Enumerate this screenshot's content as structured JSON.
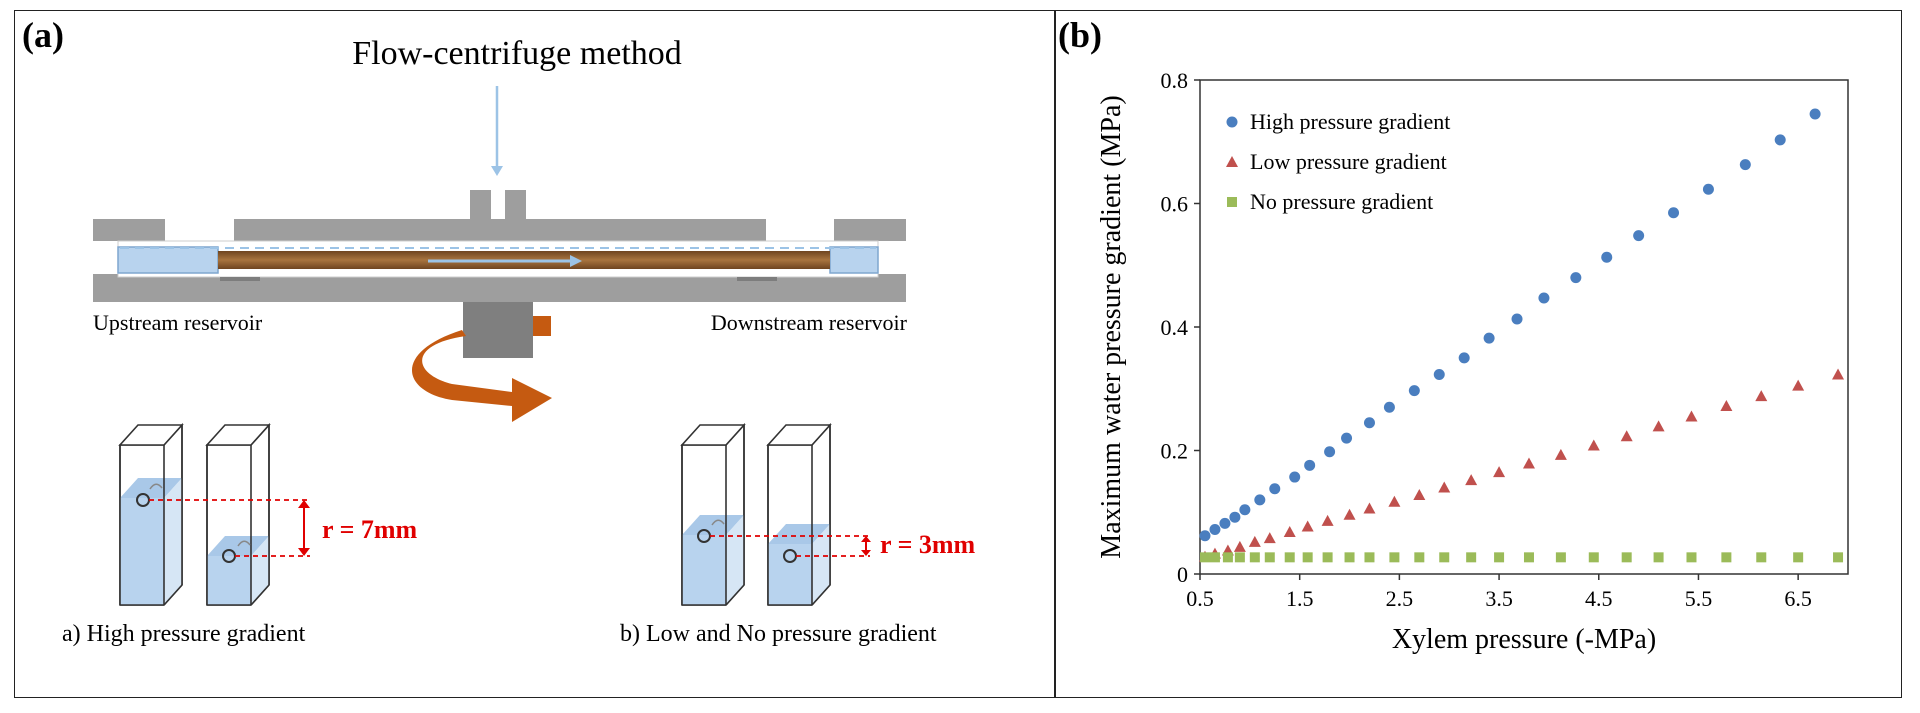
{
  "panel_a": {
    "label": "(a)",
    "title": "Flow-centrifuge method",
    "upstream_label": "Upstream reservoir",
    "downstream_label": "Downstream reservoir",
    "case_a_label": "a) High pressure gradient",
    "case_b_label": "b) Low and No pressure gradient",
    "r_high": "r = 7mm",
    "r_low": "r = 3mm"
  },
  "panel_b": {
    "label": "(b)"
  },
  "colors": {
    "high": "#4a7ebf",
    "low": "#c0504d",
    "none": "#9bbb59",
    "rotation_arrow": "#c55a11",
    "wood": "#8b5a2b",
    "water": "#b8d3ee",
    "guide_red": "#e00000"
  },
  "chart_data": {
    "type": "scatter",
    "xlabel": "Xylem pressure (-MPa)",
    "ylabel": "Maximum water pressure gradient (MPa)",
    "xlim": [
      0.5,
      7.0
    ],
    "ylim": [
      0,
      0.8
    ],
    "xticks": [
      "0.5",
      "1.5",
      "2.5",
      "3.5",
      "4.5",
      "5.5",
      "6.5"
    ],
    "yticks": [
      "0",
      "0.2",
      "0.4",
      "0.6",
      "0.8"
    ],
    "legend_position": "top-left",
    "grid": false,
    "series": [
      {
        "name": "High pressure gradient",
        "marker": "circle",
        "x": [
          0.55,
          0.65,
          0.75,
          0.85,
          0.95,
          1.1,
          1.25,
          1.45,
          1.6,
          1.8,
          1.97,
          2.2,
          2.4,
          2.65,
          2.9,
          3.15,
          3.4,
          3.68,
          3.95,
          4.27,
          4.58,
          4.9,
          5.25,
          5.6,
          5.97,
          6.32,
          6.67
        ],
        "y": [
          0.062,
          0.072,
          0.082,
          0.092,
          0.104,
          0.12,
          0.138,
          0.157,
          0.176,
          0.198,
          0.22,
          0.245,
          0.27,
          0.297,
          0.323,
          0.35,
          0.382,
          0.413,
          0.447,
          0.48,
          0.513,
          0.548,
          0.585,
          0.623,
          0.663,
          0.703,
          0.745
        ]
      },
      {
        "name": "Low pressure gradient",
        "marker": "triangle",
        "x": [
          0.55,
          0.65,
          0.78,
          0.9,
          1.05,
          1.2,
          1.4,
          1.58,
          1.78,
          2.0,
          2.2,
          2.45,
          2.7,
          2.95,
          3.22,
          3.5,
          3.8,
          4.12,
          4.45,
          4.78,
          5.1,
          5.43,
          5.78,
          6.13,
          6.5,
          6.9
        ],
        "y": [
          0.028,
          0.033,
          0.038,
          0.044,
          0.052,
          0.058,
          0.068,
          0.077,
          0.086,
          0.096,
          0.106,
          0.117,
          0.128,
          0.14,
          0.152,
          0.165,
          0.179,
          0.193,
          0.208,
          0.223,
          0.239,
          0.255,
          0.272,
          0.288,
          0.305,
          0.323
        ]
      },
      {
        "name": "No pressure gradient",
        "marker": "square",
        "x": [
          0.55,
          0.65,
          0.78,
          0.9,
          1.05,
          1.2,
          1.4,
          1.58,
          1.78,
          2.0,
          2.2,
          2.45,
          2.7,
          2.95,
          3.22,
          3.5,
          3.8,
          4.12,
          4.45,
          4.78,
          5.1,
          5.43,
          5.78,
          6.13,
          6.5,
          6.9
        ],
        "y": [
          0.027,
          0.027,
          0.027,
          0.027,
          0.027,
          0.027,
          0.027,
          0.027,
          0.027,
          0.027,
          0.027,
          0.027,
          0.027,
          0.027,
          0.027,
          0.027,
          0.027,
          0.027,
          0.027,
          0.027,
          0.027,
          0.027,
          0.027,
          0.027,
          0.027,
          0.027
        ]
      }
    ]
  }
}
